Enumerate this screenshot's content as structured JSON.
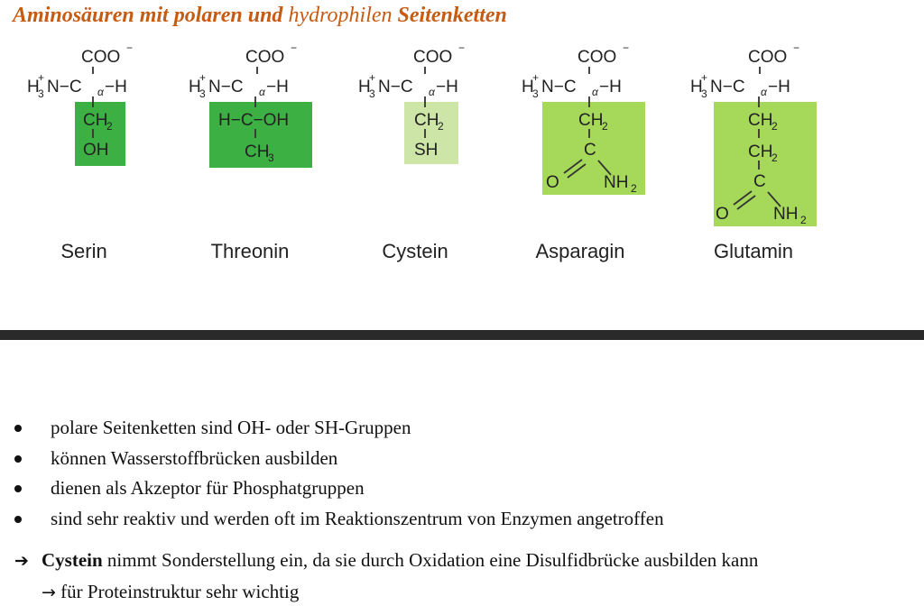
{
  "title": {
    "part1": "Aminosäuren mit polaren und ",
    "part2": "hydrophilen",
    "part3": " Seitenketten"
  },
  "colors": {
    "title": "#c65b12",
    "dark_green": "#3cb043",
    "light_green": "#cde6a8",
    "lime_green": "#a6d85a",
    "divider": "#2a2a2a"
  },
  "backbone": {
    "coo": "COO",
    "charge": "−",
    "h": "H",
    "three": "3",
    "plus": "+",
    "n_c": "N−C",
    "alpha": "α",
    "dash_h": "−H"
  },
  "molecules": [
    {
      "name": "Serin",
      "box_color": "dark-green",
      "side_chain": [
        "CH",
        "2",
        "OH"
      ]
    },
    {
      "name": "Threonin",
      "box_color": "dark-green",
      "side_chain": [
        "H−C−OH",
        "CH",
        "3"
      ]
    },
    {
      "name": "Cystein",
      "box_color": "light-green",
      "side_chain": [
        "CH",
        "2",
        "SH"
      ]
    },
    {
      "name": "Asparagin",
      "box_color": "lime-green",
      "side_chain": [
        "CH",
        "2",
        "C",
        "O",
        "NH",
        "2"
      ]
    },
    {
      "name": "Glutamin",
      "box_color": "lime-green",
      "side_chain": [
        "CH",
        "2",
        "CH",
        "2",
        "C",
        "O",
        "NH",
        "2"
      ]
    }
  ],
  "bullets": [
    "polare Seitenketten sind OH- oder SH-Gruppen",
    "können Wasserstoffbrücken ausbilden",
    "dienen als Akzeptor für Phosphatgruppen",
    "sind sehr reaktiv und werden oft im Reaktionszentrum von Enzymen angetroffen"
  ],
  "note": {
    "arrow": "➔",
    "bold": "Cystein",
    "text": " nimmt Sonderstellung ein, da sie durch Oxidation eine Disulfidbrücke ausbilden kann",
    "arrow2": "→",
    "text2": " für Proteinstruktur sehr wichtig"
  }
}
